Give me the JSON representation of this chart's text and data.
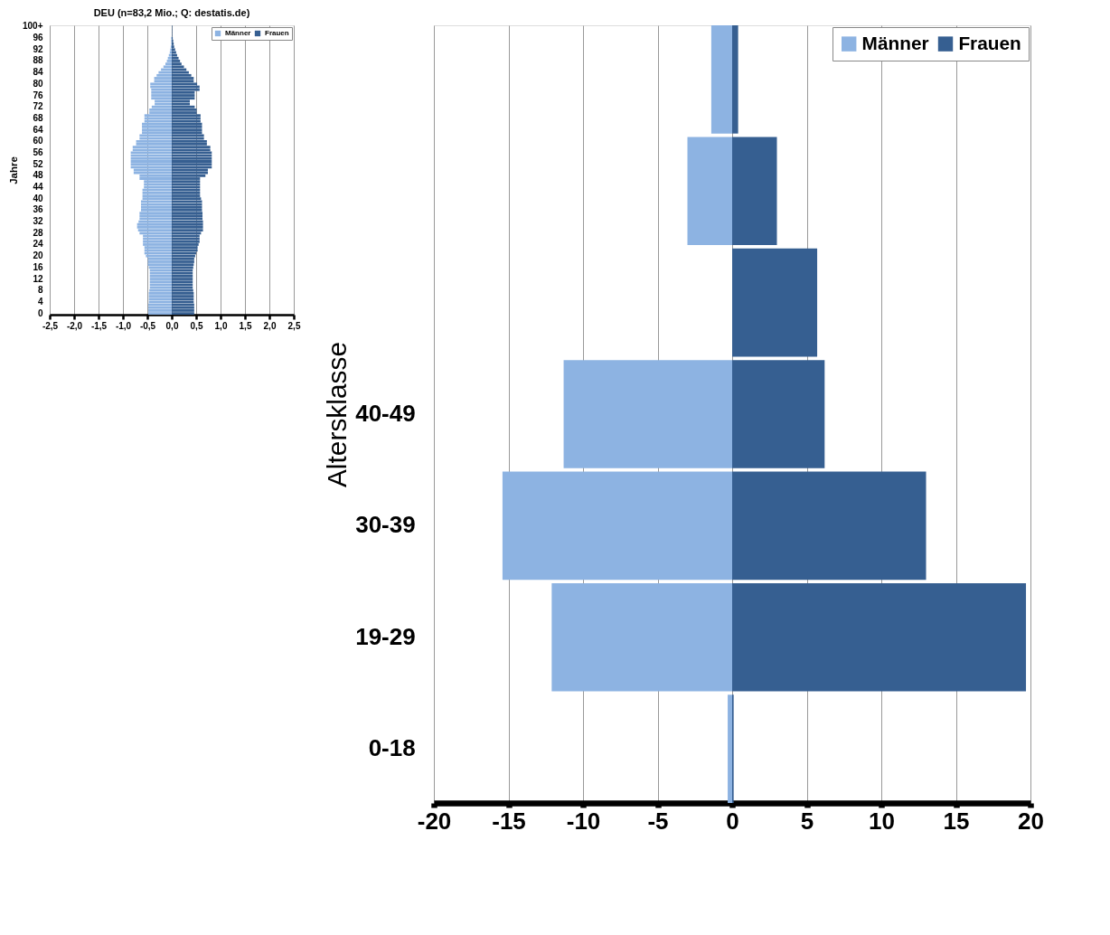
{
  "chart_data": [
    {
      "type": "bar",
      "orientation": "horizontal",
      "stacked": true,
      "title": "DEU (n=83,2 Mio.; Q: destatis.de)",
      "ylabel": "Jahre",
      "categories": [
        "100+",
        null,
        null,
        null,
        "96",
        null,
        null,
        null,
        "92",
        null,
        null,
        null,
        "88",
        null,
        null,
        null,
        "84",
        null,
        null,
        null,
        "80",
        null,
        null,
        null,
        "76",
        null,
        null,
        null,
        "72",
        null,
        null,
        null,
        "68",
        null,
        null,
        null,
        "64",
        null,
        null,
        null,
        "60",
        null,
        null,
        null,
        "56",
        null,
        null,
        null,
        "52",
        null,
        null,
        null,
        "48",
        null,
        null,
        null,
        "44",
        null,
        null,
        null,
        "40",
        null,
        null,
        null,
        "36",
        null,
        null,
        null,
        "32",
        null,
        null,
        null,
        "28",
        null,
        null,
        null,
        "24",
        null,
        null,
        null,
        "20",
        null,
        null,
        null,
        "16",
        null,
        null,
        null,
        "12",
        null,
        null,
        null,
        "8",
        null,
        null,
        null,
        "4",
        null,
        null,
        null,
        "0"
      ],
      "series": [
        {
          "name": "Männer",
          "color": "#8db3e2",
          "values": [
            0,
            0,
            0,
            0,
            -0.01,
            -0.01,
            -0.01,
            -0.02,
            -0.03,
            -0.04,
            -0.06,
            -0.08,
            -0.1,
            -0.13,
            -0.17,
            -0.22,
            -0.27,
            -0.31,
            -0.36,
            -0.36,
            -0.44,
            -0.44,
            -0.42,
            -0.42,
            -0.42,
            -0.42,
            -0.35,
            -0.35,
            -0.41,
            -0.46,
            -0.46,
            -0.56,
            -0.56,
            -0.56,
            -0.61,
            -0.61,
            -0.61,
            -0.61,
            -0.66,
            -0.66,
            -0.73,
            -0.73,
            -0.8,
            -0.8,
            -0.84,
            -0.84,
            -0.84,
            -0.84,
            -0.84,
            -0.84,
            -0.78,
            -0.78,
            -0.66,
            -0.66,
            -0.57,
            -0.57,
            -0.57,
            -0.6,
            -0.6,
            -0.6,
            -0.6,
            -0.63,
            -0.63,
            -0.63,
            -0.63,
            -0.66,
            -0.66,
            -0.66,
            -0.68,
            -0.71,
            -0.71,
            -0.69,
            -0.66,
            -0.59,
            -0.59,
            -0.59,
            -0.59,
            -0.56,
            -0.56,
            -0.56,
            -0.53,
            -0.49,
            -0.49,
            -0.49,
            -0.47,
            -0.45,
            -0.45,
            -0.45,
            -0.45,
            -0.45,
            -0.45,
            -0.45,
            -0.46,
            -0.47,
            -0.47,
            -0.47,
            -0.47,
            -0.48,
            -0.48,
            -0.48,
            -0.48
          ]
        },
        {
          "name": "Frauen",
          "color": "#365f91",
          "values": [
            0.01,
            0.01,
            0.01,
            0.01,
            0.02,
            0.03,
            0.04,
            0.05,
            0.07,
            0.09,
            0.11,
            0.14,
            0.17,
            0.2,
            0.25,
            0.3,
            0.35,
            0.4,
            0.45,
            0.45,
            0.52,
            0.57,
            0.57,
            0.47,
            0.47,
            0.47,
            0.37,
            0.37,
            0.47,
            0.51,
            0.51,
            0.59,
            0.59,
            0.59,
            0.62,
            0.62,
            0.62,
            0.62,
            0.66,
            0.66,
            0.72,
            0.72,
            0.79,
            0.79,
            0.82,
            0.82,
            0.82,
            0.82,
            0.82,
            0.82,
            0.74,
            0.74,
            0.69,
            0.58,
            0.58,
            0.58,
            0.58,
            0.58,
            0.58,
            0.58,
            0.6,
            0.62,
            0.62,
            0.62,
            0.62,
            0.63,
            0.63,
            0.63,
            0.64,
            0.64,
            0.64,
            0.64,
            0.6,
            0.57,
            0.57,
            0.57,
            0.55,
            0.53,
            0.53,
            0.5,
            0.48,
            0.46,
            0.46,
            0.45,
            0.44,
            0.43,
            0.43,
            0.43,
            0.43,
            0.43,
            0.43,
            0.43,
            0.44,
            0.45,
            0.45,
            0.45,
            0.45,
            0.46,
            0.46,
            0.46,
            0.46
          ]
        }
      ],
      "xlim": [
        -2.5,
        2.5
      ],
      "xticks": [
        {
          "value": -2.5,
          "label": "-2,5"
        },
        {
          "value": -2.0,
          "label": "-2,0"
        },
        {
          "value": -1.5,
          "label": "-1,5"
        },
        {
          "value": -1.0,
          "label": "-1,0"
        },
        {
          "value": -0.5,
          "label": "-0,5"
        },
        {
          "value": 0,
          "label": "0,0"
        },
        {
          "value": 0.5,
          "label": "0,5"
        },
        {
          "value": 1.0,
          "label": "1,0"
        },
        {
          "value": 1.5,
          "label": "1,5"
        },
        {
          "value": 2.0,
          "label": "2,0"
        },
        {
          "value": 2.5,
          "label": "2,5"
        }
      ],
      "grid": "x",
      "legend": "top right"
    },
    {
      "type": "bar",
      "orientation": "horizontal",
      "stacked": true,
      "ylabel": "Altersklasse",
      "categories": [
        null,
        null,
        null,
        "40-49",
        "30-39",
        "19-29",
        "0-18"
      ],
      "series": [
        {
          "name": "Männer",
          "color": "#8db3e2",
          "values": [
            -1.4,
            -3.0,
            null,
            -11.3,
            -15.4,
            -12.1,
            -0.3
          ]
        },
        {
          "name": "Frauen",
          "color": "#365f91",
          "values": [
            0.4,
            3.0,
            5.7,
            6.2,
            13.0,
            19.7,
            0.1
          ]
        }
      ],
      "xlim": [
        -20,
        20
      ],
      "xticks": [
        -20,
        -15,
        -10,
        -5,
        0,
        5,
        10,
        15,
        20
      ],
      "grid": "x",
      "legend": "top right"
    }
  ]
}
